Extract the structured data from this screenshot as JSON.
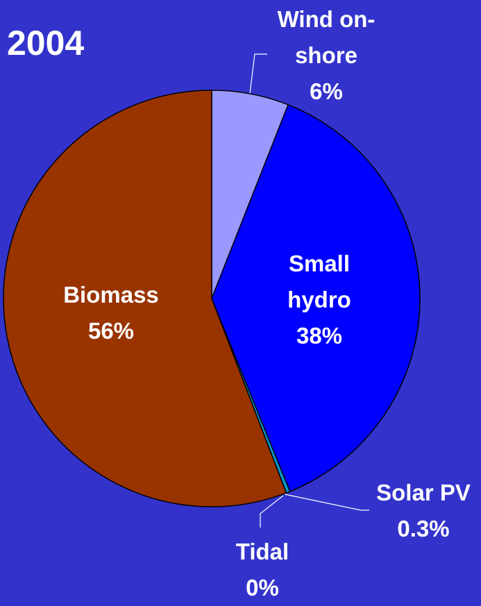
{
  "chart_data": {
    "type": "pie",
    "title": "2004",
    "categories": [
      "Wind on-shore",
      "Small hydro",
      "Solar PV",
      "Tidal",
      "Biomass"
    ],
    "values": [
      6,
      38,
      0.3,
      0,
      56
    ],
    "value_labels": [
      "6%",
      "38%",
      "0.3%",
      "0%",
      "56%"
    ],
    "colors": [
      "#9999ff",
      "#0000ff",
      "#0099cc",
      "#66ccff",
      "#993300"
    ]
  }
}
